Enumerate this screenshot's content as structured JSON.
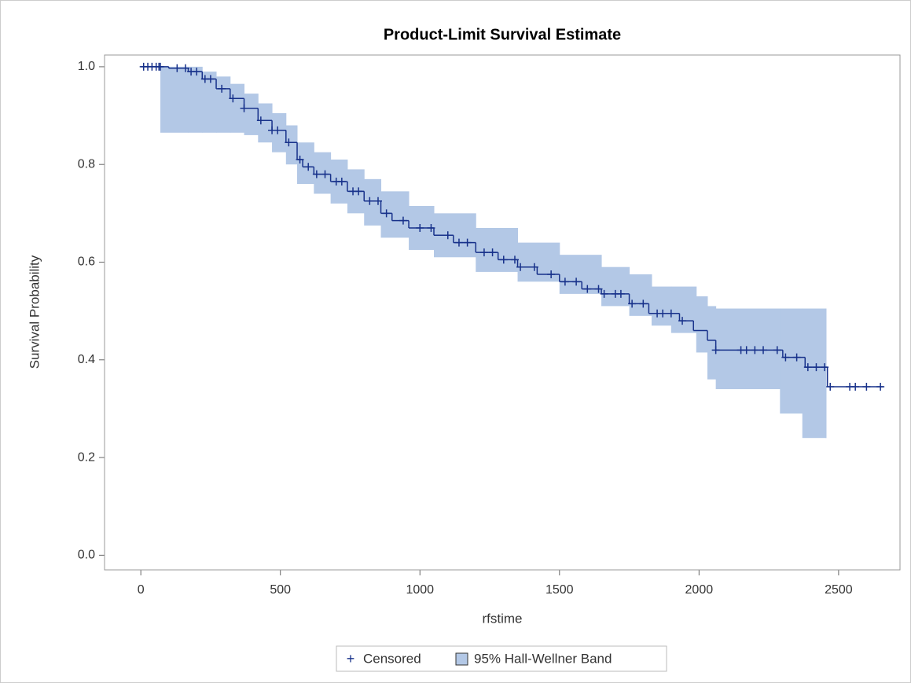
{
  "chart_data": {
    "type": "survival",
    "title": "Product-Limit Survival Estimate",
    "x_label": "rfstime",
    "y_label": "Survival Probability",
    "xlim": [
      -130,
      2720
    ],
    "ylim": [
      -0.03,
      1.024
    ],
    "xticks": [
      0,
      500,
      1000,
      1500,
      2000,
      2500
    ],
    "yticks": [
      {
        "value": 0,
        "label": "0.0"
      },
      0.2,
      0.4,
      0.6,
      0.8,
      {
        "value": 1,
        "label": "1.0"
      }
    ],
    "line_color": "#17318a",
    "x": [
      0,
      100,
      170,
      220,
      270,
      320,
      370,
      420,
      470,
      520,
      560,
      580,
      620,
      680,
      740,
      800,
      860,
      900,
      960,
      1050,
      1120,
      1200,
      1280,
      1350,
      1420,
      1500,
      1580,
      1650,
      1750,
      1820,
      1930,
      1980,
      2030,
      2060,
      2300,
      2380,
      2460,
      2660
    ],
    "values": [
      1.0,
      0.997,
      0.99,
      0.975,
      0.955,
      0.935,
      0.915,
      0.89,
      0.87,
      0.845,
      0.81,
      0.795,
      0.78,
      0.765,
      0.745,
      0.725,
      0.7,
      0.685,
      0.67,
      0.655,
      0.64,
      0.62,
      0.605,
      0.59,
      0.575,
      0.56,
      0.545,
      0.535,
      0.515,
      0.495,
      0.48,
      0.46,
      0.44,
      0.42,
      0.405,
      0.385,
      0.345,
      0.345
    ],
    "band": {
      "name": "95% Hall-Wellner Band",
      "color": "#b3c8e6",
      "x": [
        70,
        170,
        220,
        270,
        320,
        370,
        420,
        470,
        520,
        560,
        620,
        680,
        740,
        800,
        860,
        960,
        1050,
        1200,
        1350,
        1500,
        1650,
        1750,
        1830,
        1900,
        1990,
        2030,
        2060,
        2290,
        2370,
        2455
      ],
      "upper": [
        1.0,
        1.0,
        0.99,
        0.98,
        0.965,
        0.945,
        0.925,
        0.905,
        0.88,
        0.845,
        0.825,
        0.81,
        0.79,
        0.77,
        0.745,
        0.715,
        0.7,
        0.67,
        0.64,
        0.615,
        0.59,
        0.575,
        0.55,
        0.55,
        0.53,
        0.51,
        0.505,
        0.505,
        0.505,
        0.505
      ],
      "lower": [
        0.865,
        0.865,
        0.865,
        0.865,
        0.865,
        0.86,
        0.845,
        0.825,
        0.8,
        0.76,
        0.74,
        0.72,
        0.7,
        0.675,
        0.65,
        0.625,
        0.61,
        0.58,
        0.56,
        0.535,
        0.51,
        0.49,
        0.47,
        0.455,
        0.415,
        0.36,
        0.34,
        0.29,
        0.24,
        0.24
      ]
    },
    "censored": {
      "name": "Censored",
      "symbol": "+",
      "x": [
        10,
        25,
        40,
        55,
        65,
        70,
        130,
        160,
        180,
        200,
        230,
        250,
        290,
        330,
        370,
        430,
        470,
        490,
        530,
        570,
        600,
        630,
        660,
        700,
        720,
        760,
        780,
        820,
        850,
        880,
        940,
        1000,
        1040,
        1100,
        1140,
        1170,
        1230,
        1260,
        1300,
        1340,
        1360,
        1410,
        1470,
        1520,
        1560,
        1600,
        1640,
        1660,
        1700,
        1720,
        1760,
        1800,
        1850,
        1870,
        1900,
        1940,
        2060,
        2150,
        2170,
        2200,
        2230,
        2280,
        2310,
        2350,
        2390,
        2420,
        2450,
        2470,
        2540,
        2560,
        2600,
        2650
      ],
      "y": [
        1,
        1,
        1,
        1,
        1,
        1,
        0.997,
        0.997,
        0.99,
        0.99,
        0.975,
        0.975,
        0.955,
        0.935,
        0.915,
        0.89,
        0.87,
        0.87,
        0.845,
        0.81,
        0.795,
        0.78,
        0.78,
        0.765,
        0.765,
        0.745,
        0.745,
        0.725,
        0.725,
        0.7,
        0.685,
        0.67,
        0.67,
        0.655,
        0.64,
        0.64,
        0.62,
        0.62,
        0.605,
        0.605,
        0.59,
        0.59,
        0.575,
        0.56,
        0.56,
        0.545,
        0.545,
        0.535,
        0.535,
        0.535,
        0.515,
        0.515,
        0.495,
        0.495,
        0.495,
        0.48,
        0.42,
        0.42,
        0.42,
        0.42,
        0.42,
        0.42,
        0.405,
        0.405,
        0.385,
        0.385,
        0.385,
        0.345,
        0.345,
        0.345,
        0.345,
        0.345
      ]
    }
  }
}
